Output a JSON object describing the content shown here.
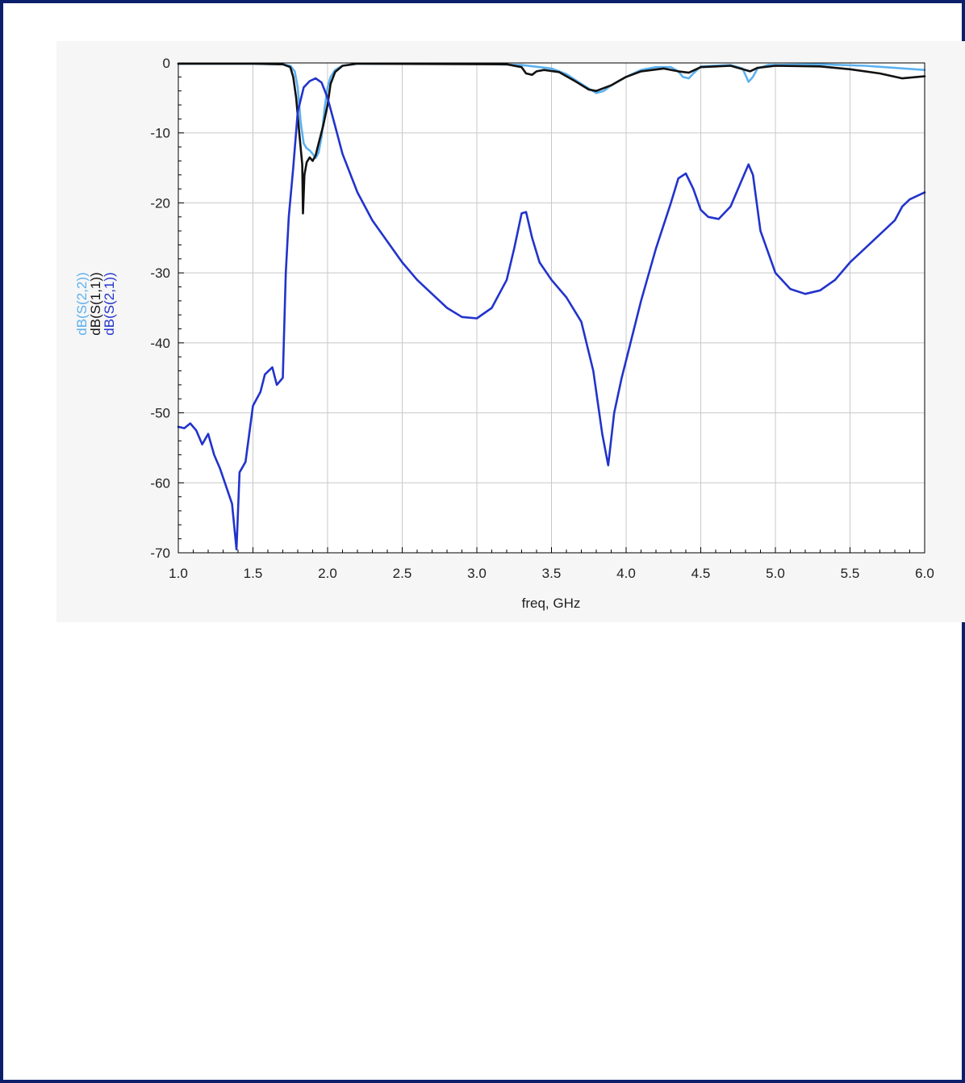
{
  "chart_data": {
    "type": "line",
    "title": "",
    "xlabel": "freq, GHz",
    "ylabel": "",
    "xlim": [
      1.0,
      6.0
    ],
    "ylim": [
      -70,
      0
    ],
    "x_ticks": [
      1.0,
      1.5,
      2.0,
      2.5,
      3.0,
      3.5,
      4.0,
      4.5,
      5.0,
      5.5,
      6.0
    ],
    "x_tick_labels": [
      "1.0",
      "1.5",
      "2.0",
      "2.5",
      "3.0",
      "3.5",
      "4.0",
      "4.5",
      "5.0",
      "5.5",
      "6.0"
    ],
    "y_ticks": [
      0,
      -10,
      -20,
      -30,
      -40,
      -50,
      -60,
      -70
    ],
    "y_tick_labels": [
      "0",
      "-10",
      "-20",
      "-30",
      "-40",
      "-50",
      "-60",
      "-70"
    ],
    "grid": true,
    "legend": "rotated-left-of-y-axis",
    "series": [
      {
        "name": "dB(S(2,2))",
        "color": "#5bb1ef",
        "points": [
          [
            1.0,
            -0.1
          ],
          [
            1.5,
            -0.1
          ],
          [
            1.7,
            -0.2
          ],
          [
            1.75,
            -0.4
          ],
          [
            1.78,
            -1.2
          ],
          [
            1.8,
            -3.5
          ],
          [
            1.82,
            -8.5
          ],
          [
            1.84,
            -11.5
          ],
          [
            1.86,
            -12.2
          ],
          [
            1.88,
            -12.5
          ],
          [
            1.9,
            -13.0
          ],
          [
            1.92,
            -13.6
          ],
          [
            1.94,
            -12.8
          ],
          [
            1.96,
            -10.5
          ],
          [
            1.98,
            -6.5
          ],
          [
            2.0,
            -3.5
          ],
          [
            2.02,
            -2.0
          ],
          [
            2.05,
            -1.0
          ],
          [
            2.1,
            -0.4
          ],
          [
            2.2,
            -0.1
          ],
          [
            3.0,
            -0.1
          ],
          [
            3.3,
            -0.3
          ],
          [
            3.5,
            -0.8
          ],
          [
            3.6,
            -1.6
          ],
          [
            3.7,
            -3.0
          ],
          [
            3.8,
            -4.3
          ],
          [
            3.85,
            -4.0
          ],
          [
            3.9,
            -3.2
          ],
          [
            4.0,
            -2.0
          ],
          [
            4.1,
            -1.0
          ],
          [
            4.2,
            -0.6
          ],
          [
            4.3,
            -0.6
          ],
          [
            4.35,
            -1.2
          ],
          [
            4.38,
            -2.0
          ],
          [
            4.42,
            -2.2
          ],
          [
            4.45,
            -1.5
          ],
          [
            4.5,
            -0.5
          ],
          [
            4.7,
            -0.3
          ],
          [
            4.78,
            -0.8
          ],
          [
            4.82,
            -2.7
          ],
          [
            4.85,
            -2.0
          ],
          [
            4.88,
            -0.8
          ],
          [
            4.95,
            -0.3
          ],
          [
            5.3,
            -0.2
          ],
          [
            5.6,
            -0.4
          ],
          [
            5.8,
            -0.7
          ],
          [
            6.0,
            -1.0
          ]
        ]
      },
      {
        "name": "dB(S(1,1))",
        "color": "#111111",
        "points": [
          [
            1.0,
            -0.1
          ],
          [
            1.5,
            -0.1
          ],
          [
            1.7,
            -0.2
          ],
          [
            1.75,
            -0.6
          ],
          [
            1.77,
            -2.0
          ],
          [
            1.79,
            -5.0
          ],
          [
            1.81,
            -10.0
          ],
          [
            1.83,
            -14.5
          ],
          [
            1.835,
            -21.5
          ],
          [
            1.845,
            -16.0
          ],
          [
            1.86,
            -14.2
          ],
          [
            1.88,
            -13.5
          ],
          [
            1.9,
            -14.0
          ],
          [
            1.92,
            -13.2
          ],
          [
            1.94,
            -11.5
          ],
          [
            1.97,
            -9.0
          ],
          [
            2.0,
            -6.0
          ],
          [
            2.02,
            -3.0
          ],
          [
            2.05,
            -1.3
          ],
          [
            2.1,
            -0.4
          ],
          [
            2.2,
            -0.1
          ],
          [
            3.2,
            -0.2
          ],
          [
            3.3,
            -0.6
          ],
          [
            3.33,
            -1.5
          ],
          [
            3.37,
            -1.7
          ],
          [
            3.4,
            -1.2
          ],
          [
            3.45,
            -1.0
          ],
          [
            3.55,
            -1.3
          ],
          [
            3.65,
            -2.5
          ],
          [
            3.75,
            -3.8
          ],
          [
            3.8,
            -4.0
          ],
          [
            3.9,
            -3.2
          ],
          [
            4.0,
            -2.0
          ],
          [
            4.1,
            -1.2
          ],
          [
            4.25,
            -0.8
          ],
          [
            4.35,
            -1.2
          ],
          [
            4.42,
            -1.4
          ],
          [
            4.5,
            -0.6
          ],
          [
            4.7,
            -0.4
          ],
          [
            4.8,
            -1.0
          ],
          [
            4.83,
            -1.2
          ],
          [
            4.88,
            -0.7
          ],
          [
            5.0,
            -0.4
          ],
          [
            5.3,
            -0.5
          ],
          [
            5.5,
            -0.9
          ],
          [
            5.7,
            -1.5
          ],
          [
            5.85,
            -2.2
          ],
          [
            6.0,
            -1.9
          ]
        ]
      },
      {
        "name": "dB(S(2,1))",
        "color": "#2233cc",
        "points": [
          [
            1.0,
            -52.0
          ],
          [
            1.04,
            -52.2
          ],
          [
            1.08,
            -51.5
          ],
          [
            1.12,
            -52.5
          ],
          [
            1.16,
            -54.5
          ],
          [
            1.2,
            -53.0
          ],
          [
            1.24,
            -56.0
          ],
          [
            1.28,
            -58.0
          ],
          [
            1.32,
            -60.5
          ],
          [
            1.36,
            -63.0
          ],
          [
            1.39,
            -69.5
          ],
          [
            1.41,
            -58.5
          ],
          [
            1.45,
            -57.0
          ],
          [
            1.5,
            -49.0
          ],
          [
            1.55,
            -47.0
          ],
          [
            1.58,
            -44.5
          ],
          [
            1.63,
            -43.5
          ],
          [
            1.66,
            -46.0
          ],
          [
            1.7,
            -45.0
          ],
          [
            1.72,
            -30.0
          ],
          [
            1.74,
            -22.0
          ],
          [
            1.77,
            -15.0
          ],
          [
            1.8,
            -7.0
          ],
          [
            1.84,
            -3.5
          ],
          [
            1.88,
            -2.6
          ],
          [
            1.92,
            -2.2
          ],
          [
            1.96,
            -2.8
          ],
          [
            2.0,
            -5.0
          ],
          [
            2.05,
            -9.0
          ],
          [
            2.1,
            -13.0
          ],
          [
            2.2,
            -18.5
          ],
          [
            2.3,
            -22.5
          ],
          [
            2.4,
            -25.5
          ],
          [
            2.5,
            -28.5
          ],
          [
            2.6,
            -31.0
          ],
          [
            2.7,
            -33.0
          ],
          [
            2.8,
            -35.0
          ],
          [
            2.9,
            -36.3
          ],
          [
            3.0,
            -36.5
          ],
          [
            3.1,
            -35.0
          ],
          [
            3.2,
            -31.0
          ],
          [
            3.25,
            -26.5
          ],
          [
            3.3,
            -21.5
          ],
          [
            3.33,
            -21.3
          ],
          [
            3.37,
            -25.0
          ],
          [
            3.42,
            -28.5
          ],
          [
            3.5,
            -31.0
          ],
          [
            3.6,
            -33.5
          ],
          [
            3.7,
            -37.0
          ],
          [
            3.78,
            -44.0
          ],
          [
            3.84,
            -53.0
          ],
          [
            3.88,
            -57.5
          ],
          [
            3.92,
            -50.0
          ],
          [
            3.97,
            -45.0
          ],
          [
            4.0,
            -42.5
          ],
          [
            4.1,
            -34.0
          ],
          [
            4.2,
            -26.5
          ],
          [
            4.3,
            -20.0
          ],
          [
            4.35,
            -16.5
          ],
          [
            4.4,
            -15.8
          ],
          [
            4.45,
            -18.0
          ],
          [
            4.5,
            -21.0
          ],
          [
            4.55,
            -22.0
          ],
          [
            4.62,
            -22.3
          ],
          [
            4.7,
            -20.5
          ],
          [
            4.77,
            -17.0
          ],
          [
            4.82,
            -14.5
          ],
          [
            4.85,
            -16.0
          ],
          [
            4.9,
            -24.0
          ],
          [
            5.0,
            -30.0
          ],
          [
            5.1,
            -32.3
          ],
          [
            5.2,
            -33.0
          ],
          [
            5.3,
            -32.5
          ],
          [
            5.4,
            -31.0
          ],
          [
            5.5,
            -28.5
          ],
          [
            5.6,
            -26.5
          ],
          [
            5.7,
            -24.5
          ],
          [
            5.8,
            -22.5
          ],
          [
            5.85,
            -20.5
          ],
          [
            5.9,
            -19.5
          ],
          [
            6.0,
            -18.5
          ]
        ]
      }
    ]
  }
}
